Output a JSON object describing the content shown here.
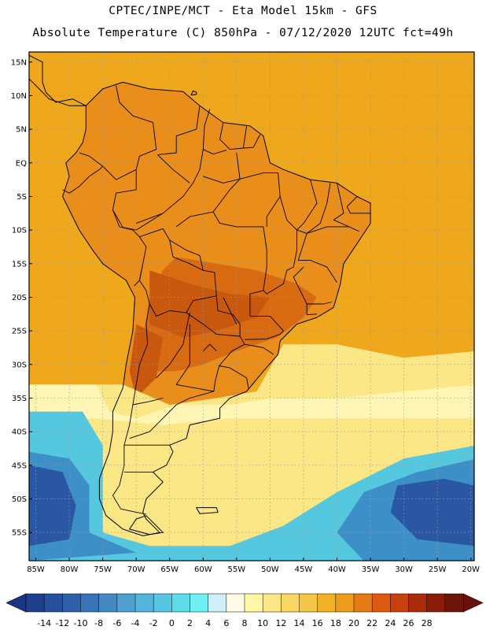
{
  "header": {
    "line1": "CPTEC/INPE/MCT -  Eta Model 15km - GFS",
    "line2": "Absolute Temperature (C) 850hPa - 07/12/2020 12UTC fct=49h"
  },
  "axes": {
    "lat_labels": [
      "15N",
      "10N",
      "5N",
      "EQ",
      "5S",
      "10S",
      "15S",
      "20S",
      "25S",
      "30S",
      "35S",
      "40S",
      "45S",
      "50S",
      "55S"
    ],
    "lon_labels": [
      "85W",
      "80W",
      "75W",
      "70W",
      "65W",
      "60W",
      "55W",
      "50W",
      "45W",
      "40W",
      "35W",
      "30W",
      "25W",
      "20W"
    ]
  },
  "colorbar": {
    "labels": [
      "-14",
      "-12",
      "-10",
      "-8",
      "-6",
      "-4",
      "-2",
      "0",
      "2",
      "4",
      "6",
      "8",
      "10",
      "12",
      "14",
      "16",
      "18",
      "20",
      "22",
      "24",
      "26",
      "28"
    ],
    "colors": [
      "#1e3f8c",
      "#264f9c",
      "#2f5fab",
      "#3a74b8",
      "#4589c4",
      "#4f9fd0",
      "#55b4dc",
      "#57c6e3",
      "#5fdce9",
      "#6ff0f5",
      "#cfeffa",
      "#fffbe6",
      "#fff6a8",
      "#fbe785",
      "#f8d863",
      "#f4c646",
      "#f1b225",
      "#ee9a1c",
      "#e67b14",
      "#dd5a10",
      "#c8400c",
      "#a92b0a",
      "#8c1c0a",
      "#6f1508"
    ],
    "low_color": "#1a3585",
    "high_color": "#6a0f0a"
  },
  "field": {
    "background": "#efa81c",
    "land_warm": "#e98e1a",
    "hot_core": "#d86a12",
    "hottest": "#c9580f",
    "south_cool_light": "#fbe785",
    "south_cool_pale": "#fff6b5",
    "cold_sea": "#55c8e0",
    "colder_sea": "#3d8fc8",
    "coldest_sea": "#2a56a3"
  }
}
